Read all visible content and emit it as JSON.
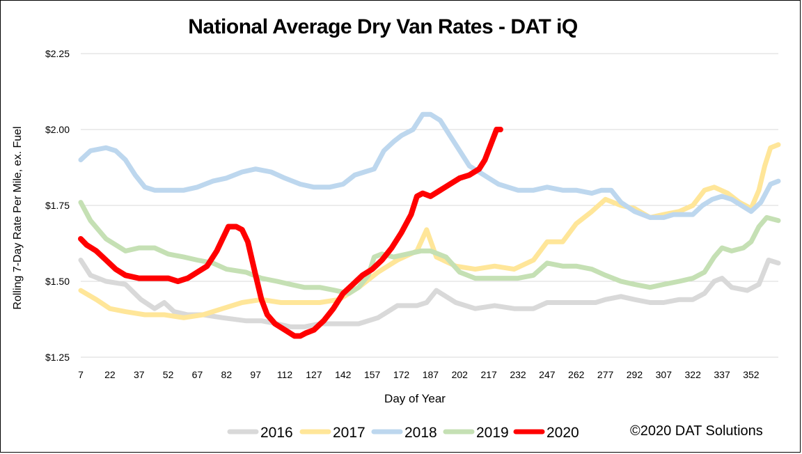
{
  "chart_data": {
    "type": "line",
    "title": "National Average Dry Van Rates - DAT iQ",
    "xlabel": "Day of Year",
    "ylabel": "Rolling 7-Day Rate Per Mile, ex. Fuel",
    "xlim": [
      7,
      366
    ],
    "ylim": [
      1.25,
      2.25
    ],
    "y_ticks": [
      1.25,
      1.5,
      1.75,
      2.0,
      2.25
    ],
    "y_tick_labels": [
      "$1.25",
      "$1.50",
      "$1.75",
      "$2.00",
      "$2.25"
    ],
    "x_ticks": [
      7,
      22,
      37,
      52,
      67,
      82,
      97,
      112,
      127,
      142,
      157,
      172,
      187,
      202,
      217,
      232,
      247,
      262,
      277,
      292,
      307,
      322,
      337,
      352
    ],
    "grid": "horizontal",
    "legend_position": "bottom",
    "series": [
      {
        "name": "2016",
        "color": "#d9d9d9",
        "x": [
          7,
          12,
          20,
          30,
          38,
          45,
          50,
          55,
          62,
          70,
          80,
          92,
          100,
          108,
          115,
          122,
          130,
          140,
          150,
          160,
          165,
          170,
          180,
          185,
          190,
          200,
          210,
          220,
          230,
          240,
          247,
          255,
          265,
          272,
          277,
          285,
          292,
          300,
          307,
          315,
          322,
          328,
          333,
          337,
          342,
          350,
          356,
          361,
          366
        ],
        "values": [
          1.57,
          1.52,
          1.5,
          1.49,
          1.44,
          1.41,
          1.43,
          1.4,
          1.39,
          1.39,
          1.38,
          1.37,
          1.37,
          1.36,
          1.35,
          1.35,
          1.36,
          1.36,
          1.36,
          1.38,
          1.4,
          1.42,
          1.42,
          1.43,
          1.47,
          1.43,
          1.41,
          1.42,
          1.41,
          1.41,
          1.43,
          1.43,
          1.43,
          1.43,
          1.44,
          1.45,
          1.44,
          1.43,
          1.43,
          1.44,
          1.44,
          1.46,
          1.5,
          1.51,
          1.48,
          1.47,
          1.49,
          1.57,
          1.56
        ]
      },
      {
        "name": "2017",
        "color": "#ffe699",
        "x": [
          7,
          15,
          22,
          30,
          40,
          50,
          60,
          70,
          80,
          90,
          100,
          110,
          120,
          130,
          140,
          150,
          160,
          170,
          180,
          185,
          190,
          200,
          210,
          220,
          230,
          240,
          247,
          255,
          262,
          270,
          277,
          285,
          292,
          300,
          307,
          315,
          322,
          328,
          333,
          340,
          346,
          352,
          356,
          359,
          362,
          366
        ],
        "values": [
          1.47,
          1.44,
          1.41,
          1.4,
          1.39,
          1.39,
          1.38,
          1.39,
          1.41,
          1.43,
          1.44,
          1.43,
          1.43,
          1.43,
          1.44,
          1.48,
          1.53,
          1.57,
          1.6,
          1.67,
          1.58,
          1.55,
          1.54,
          1.55,
          1.54,
          1.57,
          1.63,
          1.63,
          1.69,
          1.73,
          1.77,
          1.75,
          1.74,
          1.71,
          1.72,
          1.73,
          1.75,
          1.8,
          1.81,
          1.79,
          1.76,
          1.74,
          1.8,
          1.88,
          1.94,
          1.95
        ]
      },
      {
        "name": "2018",
        "color": "#bdd7ee",
        "x": [
          7,
          12,
          20,
          25,
          30,
          35,
          40,
          45,
          52,
          60,
          67,
          75,
          82,
          90,
          97,
          105,
          112,
          120,
          127,
          135,
          142,
          148,
          153,
          158,
          163,
          168,
          172,
          178,
          183,
          187,
          192,
          197,
          202,
          207,
          212,
          217,
          222,
          232,
          240,
          247,
          255,
          262,
          270,
          275,
          280,
          285,
          292,
          300,
          307,
          312,
          318,
          322,
          327,
          332,
          337,
          342,
          347,
          352,
          357,
          362,
          366
        ],
        "values": [
          1.9,
          1.93,
          1.94,
          1.93,
          1.9,
          1.85,
          1.81,
          1.8,
          1.8,
          1.8,
          1.81,
          1.83,
          1.84,
          1.86,
          1.87,
          1.86,
          1.84,
          1.82,
          1.81,
          1.81,
          1.82,
          1.85,
          1.86,
          1.87,
          1.93,
          1.96,
          1.98,
          2.0,
          2.05,
          2.05,
          2.03,
          1.98,
          1.93,
          1.88,
          1.86,
          1.84,
          1.82,
          1.8,
          1.8,
          1.81,
          1.8,
          1.8,
          1.79,
          1.8,
          1.8,
          1.76,
          1.73,
          1.71,
          1.71,
          1.72,
          1.72,
          1.72,
          1.75,
          1.77,
          1.78,
          1.77,
          1.75,
          1.73,
          1.76,
          1.82,
          1.83
        ]
      },
      {
        "name": "2019",
        "color": "#c5e0b4",
        "x": [
          7,
          12,
          20,
          30,
          37,
          45,
          52,
          60,
          67,
          75,
          82,
          92,
          100,
          108,
          115,
          122,
          130,
          138,
          145,
          150,
          155,
          158,
          162,
          168,
          175,
          182,
          187,
          195,
          202,
          210,
          220,
          232,
          240,
          247,
          255,
          262,
          270,
          277,
          285,
          292,
          300,
          307,
          315,
          322,
          328,
          333,
          337,
          342,
          348,
          352,
          356,
          360,
          366
        ],
        "values": [
          1.76,
          1.7,
          1.64,
          1.6,
          1.61,
          1.61,
          1.59,
          1.58,
          1.57,
          1.56,
          1.54,
          1.53,
          1.51,
          1.5,
          1.49,
          1.48,
          1.48,
          1.47,
          1.46,
          1.48,
          1.52,
          1.58,
          1.59,
          1.58,
          1.59,
          1.6,
          1.6,
          1.58,
          1.53,
          1.51,
          1.51,
          1.51,
          1.52,
          1.56,
          1.55,
          1.55,
          1.54,
          1.52,
          1.5,
          1.49,
          1.48,
          1.49,
          1.5,
          1.51,
          1.53,
          1.58,
          1.61,
          1.6,
          1.61,
          1.63,
          1.68,
          1.71,
          1.7
        ]
      },
      {
        "name": "2020",
        "color": "#ff0000",
        "x": [
          7,
          10,
          15,
          20,
          25,
          30,
          37,
          45,
          52,
          57,
          62,
          67,
          72,
          77,
          80,
          83,
          87,
          90,
          93,
          97,
          100,
          103,
          107,
          112,
          117,
          120,
          123,
          127,
          132,
          137,
          142,
          147,
          152,
          157,
          162,
          167,
          172,
          177,
          180,
          183,
          187,
          192,
          197,
          202,
          207,
          212,
          215,
          218,
          221,
          223
        ],
        "values": [
          1.64,
          1.62,
          1.6,
          1.57,
          1.54,
          1.52,
          1.51,
          1.51,
          1.51,
          1.5,
          1.51,
          1.53,
          1.55,
          1.6,
          1.64,
          1.68,
          1.68,
          1.67,
          1.63,
          1.52,
          1.44,
          1.39,
          1.36,
          1.34,
          1.32,
          1.32,
          1.33,
          1.34,
          1.37,
          1.41,
          1.46,
          1.49,
          1.52,
          1.54,
          1.57,
          1.61,
          1.66,
          1.72,
          1.78,
          1.79,
          1.78,
          1.8,
          1.82,
          1.84,
          1.85,
          1.87,
          1.9,
          1.95,
          2.0,
          2.0
        ]
      }
    ]
  },
  "copyright": "©2020 DAT Solutions"
}
